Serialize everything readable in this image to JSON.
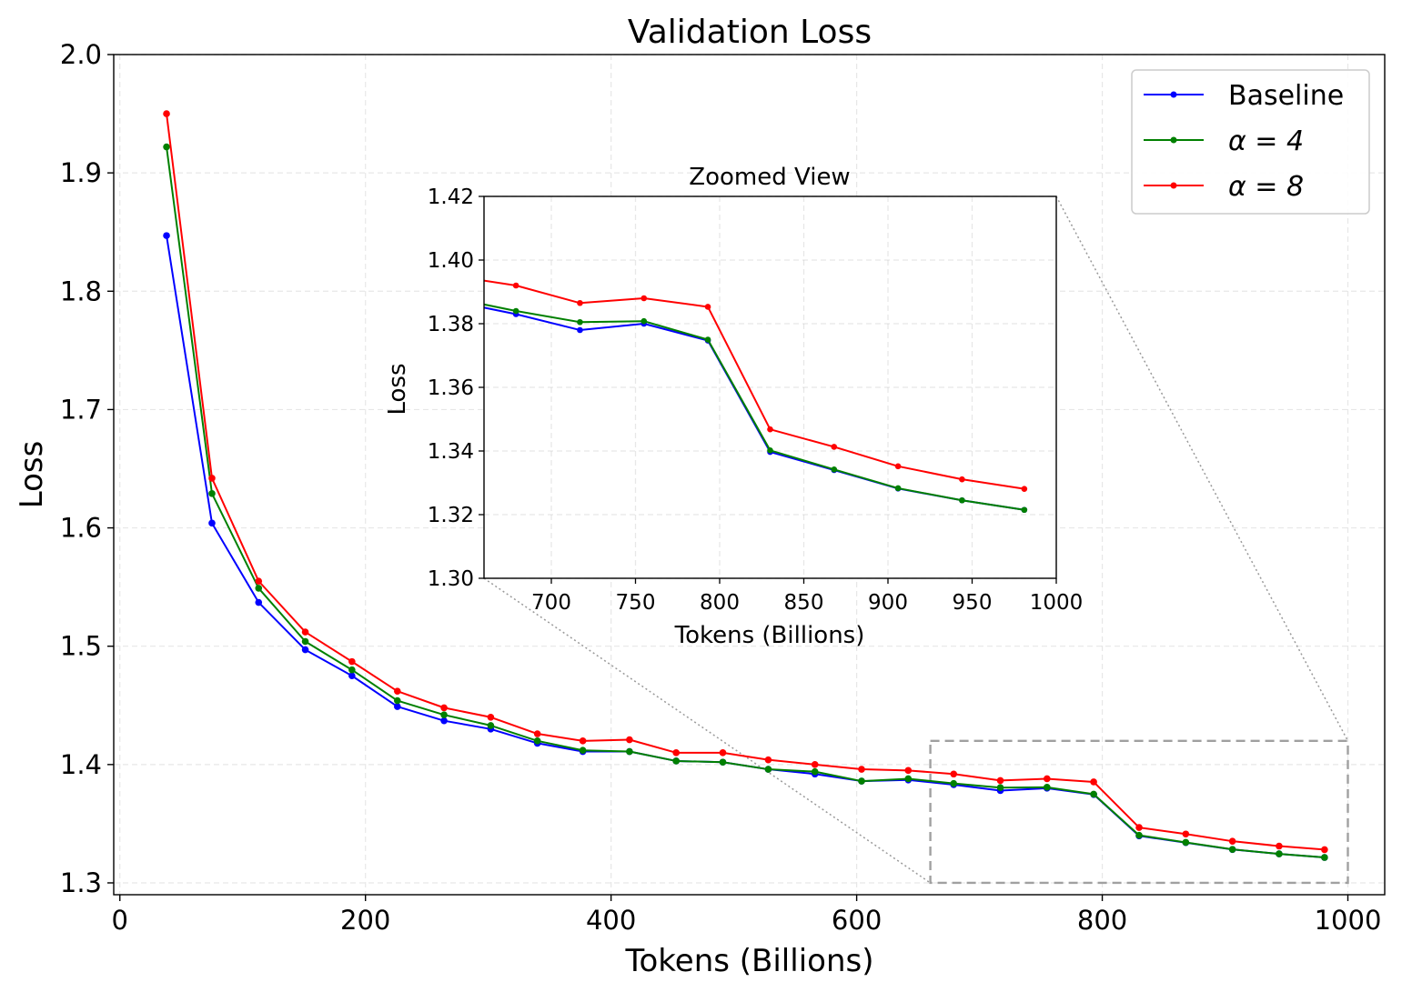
{
  "chart_data": [
    {
      "type": "line",
      "title": "Validation Loss",
      "xlabel": "Tokens (Billions)",
      "ylabel": "Loss",
      "xlim": [
        -5,
        1030
      ],
      "ylim": [
        1.29,
        2.0
      ],
      "xticks": [
        0,
        200,
        400,
        600,
        800,
        1000
      ],
      "yticks": [
        1.3,
        1.4,
        1.5,
        1.6,
        1.7,
        1.8,
        1.9,
        2.0
      ],
      "xtick_labels": [
        "0",
        "200",
        "400",
        "600",
        "800",
        "1000"
      ],
      "ytick_labels": [
        "1.3",
        "1.4",
        "1.5",
        "1.6",
        "1.7",
        "1.8",
        "1.9",
        "2.0"
      ],
      "grid": true,
      "legend_position": "top-right",
      "x": [
        38,
        75,
        113,
        151,
        189,
        226,
        264,
        302,
        340,
        377,
        415,
        453,
        491,
        528,
        566,
        604,
        642,
        679,
        717,
        755,
        793,
        830,
        868,
        906,
        944,
        981
      ],
      "series": [
        {
          "name": "Baseline",
          "legend_label": "Baseline",
          "color": "#0000ff",
          "values": [
            1.847,
            1.604,
            1.537,
            1.497,
            1.475,
            1.449,
            1.437,
            1.43,
            1.418,
            1.411,
            1.411,
            1.403,
            1.402,
            1.396,
            1.392,
            1.386,
            1.387,
            1.383,
            1.378,
            1.38,
            1.3747,
            1.3397,
            1.334,
            1.3282,
            1.3245,
            1.3215
          ]
        },
        {
          "name": "α = 4",
          "legend_label": "α = 4",
          "color": "#008000",
          "values": [
            1.922,
            1.629,
            1.549,
            1.504,
            1.48,
            1.454,
            1.442,
            1.433,
            1.42,
            1.412,
            1.411,
            1.403,
            1.402,
            1.396,
            1.394,
            1.386,
            1.388,
            1.384,
            1.3805,
            1.3808,
            1.375,
            1.3402,
            1.3342,
            1.3283,
            1.3245,
            1.3215
          ]
        },
        {
          "name": "α = 8",
          "legend_label": "α = 8",
          "color": "#ff0000",
          "values": [
            1.95,
            1.642,
            1.555,
            1.512,
            1.487,
            1.462,
            1.448,
            1.44,
            1.426,
            1.42,
            1.421,
            1.41,
            1.41,
            1.404,
            1.4,
            1.396,
            1.395,
            1.392,
            1.3865,
            1.388,
            1.3853,
            1.3468,
            1.3413,
            1.3352,
            1.3311,
            1.3281
          ]
        }
      ],
      "zoom_region": {
        "x": [
          660,
          1000
        ],
        "y": [
          1.3,
          1.42
        ]
      }
    },
    {
      "type": "line",
      "title": "Zoomed View",
      "xlabel": "Tokens (Billions)",
      "ylabel": "Loss",
      "xlim": [
        660,
        1000
      ],
      "ylim": [
        1.3,
        1.42
      ],
      "xticks": [
        700,
        750,
        800,
        850,
        900,
        950,
        1000
      ],
      "yticks": [
        1.3,
        1.32,
        1.34,
        1.36,
        1.38,
        1.4,
        1.42
      ],
      "xtick_labels": [
        "700",
        "750",
        "800",
        "850",
        "900",
        "950",
        "1000"
      ],
      "ytick_labels": [
        "1.30",
        "1.32",
        "1.34",
        "1.36",
        "1.38",
        "1.40",
        "1.42"
      ],
      "grid": true
    }
  ]
}
